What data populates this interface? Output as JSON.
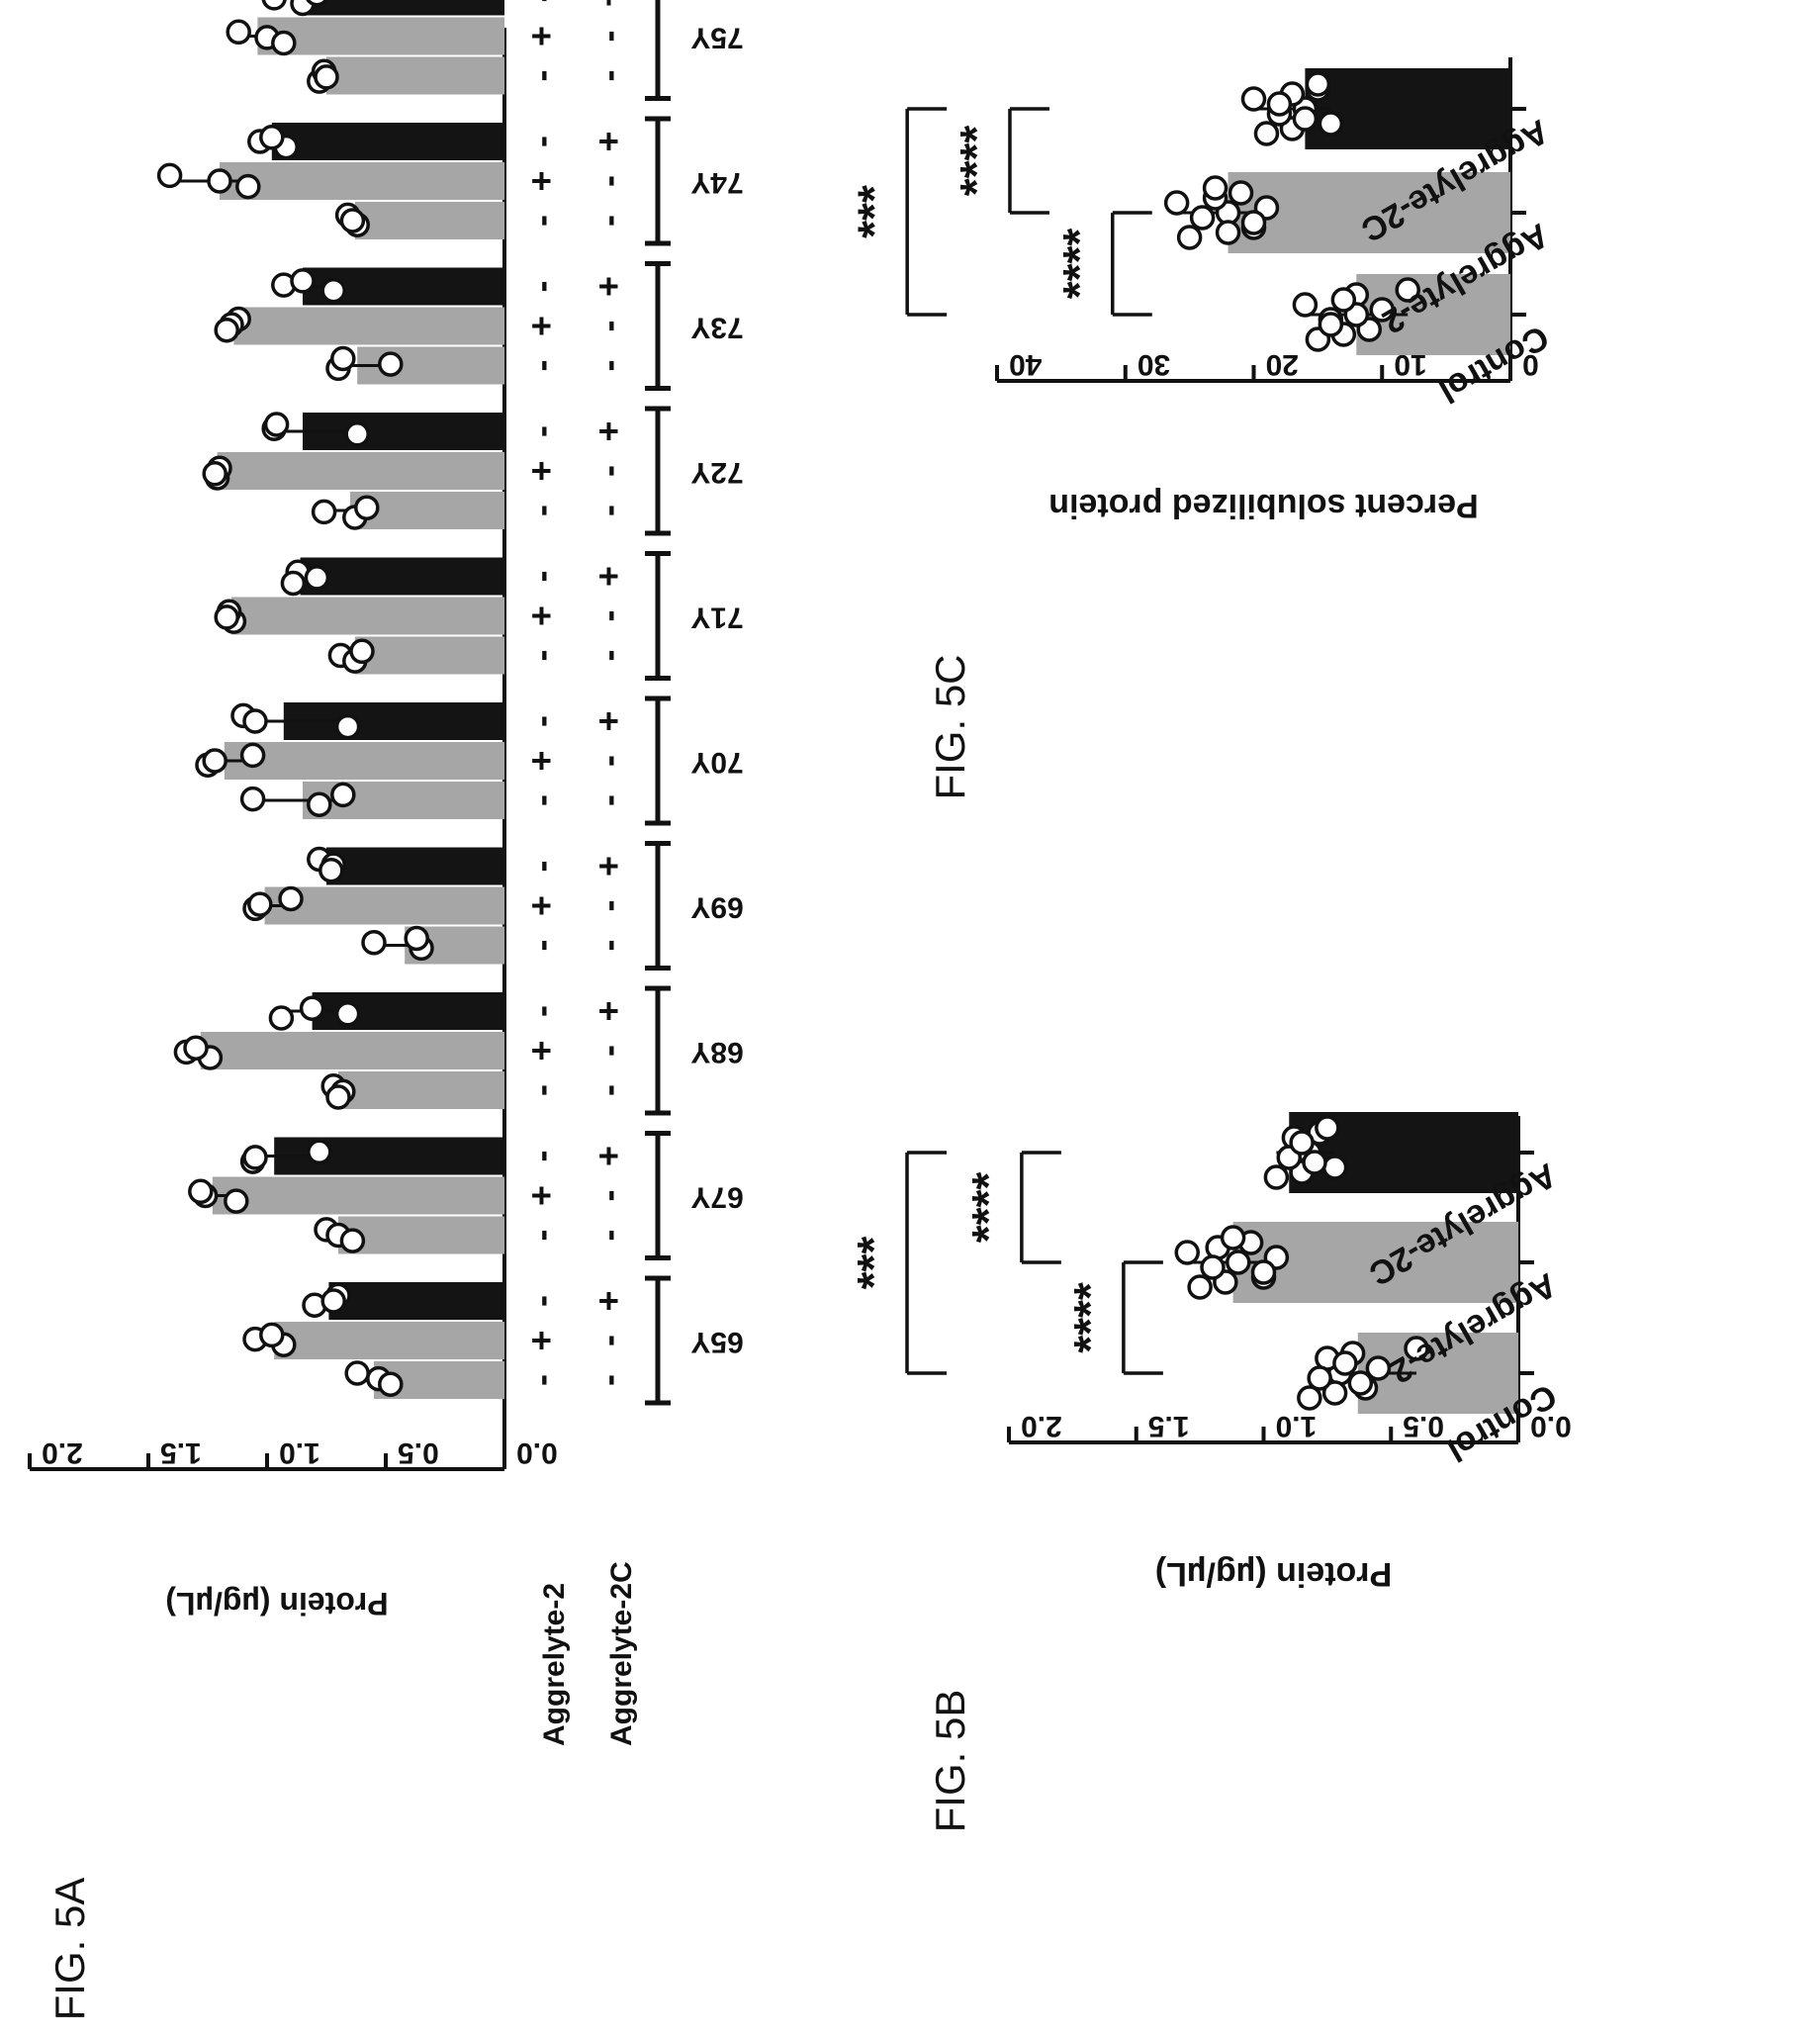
{
  "figure_labels": {
    "fig5a": "FIG. 5A",
    "fig5b": "FIG. 5B",
    "fig5c": "FIG. 5C"
  },
  "chart_data": [
    {
      "id": "fig5a",
      "type": "bar",
      "ylabel": "Protein (µg/µL)",
      "ylim": [
        0,
        2.0
      ],
      "yticks": [
        "0.0",
        "0.5",
        "1.0",
        "1.5",
        "2.0"
      ],
      "groups": [
        "65Y",
        "67Y",
        "68Y",
        "69Y",
        "70Y",
        "71Y",
        "72Y",
        "73Y",
        "74Y",
        "75Y"
      ],
      "condition_rows": [
        {
          "label": "Aggrelyte-2",
          "signs": [
            "-",
            "+",
            "-"
          ]
        },
        {
          "label": "Aggrelyte-2C",
          "signs": [
            "-",
            "-",
            "+"
          ]
        }
      ],
      "bar_colors": [
        "#a6a6a6",
        "#a6a6a6",
        "#141414"
      ],
      "means": [
        [
          0.55,
          0.97,
          0.74
        ],
        [
          0.7,
          1.23,
          0.97
        ],
        [
          0.7,
          1.28,
          0.81
        ],
        [
          0.42,
          1.01,
          0.75
        ],
        [
          0.85,
          1.18,
          0.93
        ],
        [
          0.63,
          1.15,
          0.86
        ],
        [
          0.65,
          1.21,
          0.85
        ],
        [
          0.62,
          1.14,
          0.85
        ],
        [
          0.63,
          1.2,
          0.98
        ],
        [
          0.75,
          1.04,
          0.87
        ]
      ],
      "points": [
        [
          [
            0.62,
            0.53,
            0.48
          ],
          [
            1.05,
            0.93,
            0.98
          ],
          [
            0.8,
            0.7,
            0.72
          ]
        ],
        [
          [
            0.75,
            0.7,
            0.64
          ],
          [
            1.26,
            1.13,
            1.28
          ],
          [
            1.06,
            0.78,
            1.05
          ]
        ],
        [
          [
            0.72,
            0.68,
            0.7
          ],
          [
            1.34,
            1.24,
            1.3
          ],
          [
            0.94,
            0.81,
            0.66
          ]
        ],
        [
          [
            0.55,
            0.35,
            0.37
          ],
          [
            1.05,
            0.9,
            1.03
          ],
          [
            0.78,
            0.72,
            0.73
          ]
        ],
        [
          [
            1.06,
            0.78,
            0.68
          ],
          [
            1.25,
            1.06,
            1.22
          ],
          [
            1.1,
            1.05,
            0.66
          ]
        ],
        [
          [
            0.69,
            0.63,
            0.6
          ],
          [
            1.14,
            1.16,
            1.17
          ],
          [
            0.87,
            0.79,
            0.89
          ]
        ],
        [
          [
            0.76,
            0.63,
            0.58
          ],
          [
            1.21,
            1.2,
            1.22
          ],
          [
            0.97,
            0.62,
            0.96
          ]
        ],
        [
          [
            0.7,
            0.68,
            0.48
          ],
          [
            1.12,
            1.15,
            1.17
          ],
          [
            0.93,
            0.72,
            0.85
          ]
        ],
        [
          [
            0.62,
            0.66,
            0.64
          ],
          [
            1.41,
            1.2,
            1.08
          ],
          [
            1.03,
            0.92,
            0.98
          ]
        ],
        [
          [
            0.78,
            0.76,
            0.75
          ],
          [
            1.12,
            1.0,
            0.93
          ],
          [
            0.97,
            0.85,
            0.79
          ]
        ]
      ]
    },
    {
      "id": "fig5b",
      "type": "bar",
      "ylabel": "Protein (µg/µL)",
      "ylim": [
        0,
        2.0
      ],
      "yticks": [
        "0.0",
        "0.5",
        "1.0",
        "1.5",
        "2.0"
      ],
      "categories": [
        "Control",
        "Aggrelyte-2",
        "Aggrelyte-2C"
      ],
      "bar_colors": [
        "#a6a6a6",
        "#a6a6a6",
        "#141414"
      ],
      "means": [
        0.63,
        1.12,
        0.9
      ],
      "points": [
        [
          0.4,
          0.55,
          0.6,
          0.65,
          0.7,
          0.72,
          0.75,
          0.78,
          0.82,
          0.68,
          0.62
        ],
        [
          0.95,
          1.0,
          1.05,
          1.1,
          1.15,
          1.18,
          1.2,
          1.25,
          1.3,
          1.0,
          1.12
        ],
        [
          0.72,
          0.78,
          0.82,
          0.85,
          0.88,
          0.9,
          0.95,
          0.85,
          0.8,
          0.75
        ]
      ],
      "significance": [
        {
          "from": 0,
          "to": 1,
          "label": "****",
          "level": 1.55
        },
        {
          "from": 1,
          "to": 2,
          "label": "****",
          "level": 1.95
        },
        {
          "from": 0,
          "to": 2,
          "label": "***",
          "level": 2.4
        }
      ]
    },
    {
      "id": "fig5c",
      "type": "bar",
      "ylabel": "Percent solubilized protein",
      "ylim": [
        0,
        40
      ],
      "yticks": [
        "0",
        "10",
        "20",
        "30",
        "40"
      ],
      "categories": [
        "Control",
        "Aggrelyte-2",
        "Aggrelyte-2C"
      ],
      "bar_colors": [
        "#a6a6a6",
        "#a6a6a6",
        "#141414"
      ],
      "means": [
        12,
        22,
        16
      ],
      "points": [
        [
          8,
          10,
          11,
          12,
          12,
          13,
          13,
          14,
          15,
          16,
          14
        ],
        [
          19,
          20,
          21,
          22,
          22,
          23,
          24,
          25,
          26,
          20,
          23
        ],
        [
          14,
          15,
          16,
          17,
          17,
          18,
          19,
          20,
          16,
          15,
          18
        ]
      ],
      "significance": [
        {
          "from": 0,
          "to": 1,
          "label": "****",
          "level": 31
        },
        {
          "from": 1,
          "to": 2,
          "label": "****",
          "level": 39
        },
        {
          "from": 0,
          "to": 2,
          "label": "***",
          "level": 47
        }
      ]
    }
  ]
}
